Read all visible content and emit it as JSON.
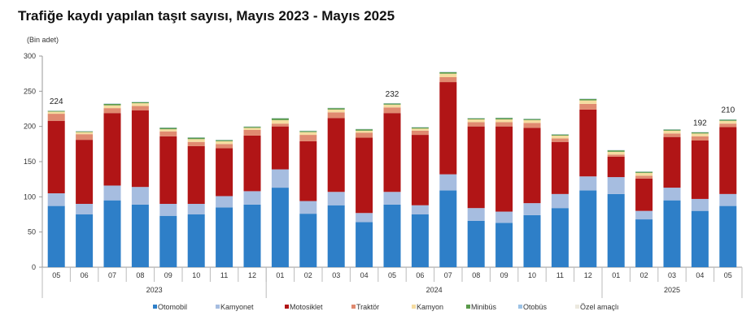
{
  "chart_data": {
    "type": "bar",
    "stacked": true,
    "title": "Trafiğe kaydı yapılan taşıt sayısı, Mayıs 2023 - Mayıs 2025",
    "ylabel": "(Bin adet)",
    "ylim": [
      0,
      300
    ],
    "yticks": [
      0,
      50,
      100,
      150,
      200,
      250,
      300
    ],
    "grid": false,
    "legend": "bottom",
    "categories": [
      "05",
      "06",
      "07",
      "08",
      "09",
      "10",
      "11",
      "12",
      "01",
      "02",
      "03",
      "04",
      "05",
      "06",
      "07",
      "08",
      "09",
      "10",
      "11",
      "12",
      "01",
      "02",
      "03",
      "04",
      "05"
    ],
    "years": [
      {
        "label": "2023",
        "count": 8
      },
      {
        "label": "2024",
        "count": 12
      },
      {
        "label": "2025",
        "count": 5
      }
    ],
    "total_labels": [
      {
        "index": 0,
        "text": "224"
      },
      {
        "index": 12,
        "text": "232"
      },
      {
        "index": 23,
        "text": "192"
      },
      {
        "index": 24,
        "text": "210"
      }
    ],
    "series": [
      {
        "name": "Otomobil",
        "color": "#2e7fc8",
        "values": [
          87,
          75,
          95,
          89,
          73,
          75,
          85,
          89,
          113,
          76,
          88,
          64,
          89,
          75,
          109,
          66,
          63,
          74,
          84,
          109,
          104,
          68,
          95,
          80,
          87
        ]
      },
      {
        "name": "Kamyonet",
        "color": "#a6bde0",
        "values": [
          18,
          15,
          21,
          25,
          17,
          15,
          16,
          19,
          26,
          18,
          19,
          13,
          18,
          13,
          23,
          18,
          16,
          17,
          20,
          20,
          24,
          12,
          18,
          17,
          17
        ]
      },
      {
        "name": "Motosiklet",
        "color": "#b11516",
        "values": [
          103,
          91,
          103,
          109,
          96,
          82,
          68,
          79,
          61,
          85,
          105,
          107,
          112,
          100,
          131,
          116,
          121,
          107,
          74,
          95,
          29,
          46,
          72,
          83,
          95
        ]
      },
      {
        "name": "Traktör",
        "color": "#e08a70",
        "values": [
          10,
          8,
          7,
          6,
          7,
          6,
          6,
          8,
          4,
          9,
          8,
          7,
          8,
          6,
          7,
          6,
          6,
          7,
          5,
          8,
          3,
          4,
          5,
          6,
          5
        ]
      },
      {
        "name": "Kamyon",
        "color": "#f5dca0",
        "values": [
          3,
          3,
          4,
          4,
          3,
          4,
          4,
          3,
          5,
          4,
          4,
          3,
          4,
          3,
          5,
          4,
          4,
          4,
          4,
          5,
          4,
          4,
          4,
          4,
          4
        ]
      },
      {
        "name": "Minibüs",
        "color": "#5a9a4a",
        "values": [
          1,
          1,
          2,
          1.5,
          2,
          2,
          1.5,
          1.5,
          2.5,
          1.5,
          2,
          2,
          1.5,
          1.5,
          2,
          1.5,
          2,
          1.5,
          1.5,
          2,
          2,
          1.5,
          1.5,
          1.5,
          1.5
        ]
      },
      {
        "name": "Otobüs",
        "color": "#9dc3e6",
        "values": [
          0.5,
          0.5,
          0.5,
          0.5,
          0.5,
          0.5,
          0.5,
          0.5,
          0.5,
          0.5,
          0.5,
          0.5,
          0.5,
          0.5,
          0.5,
          0.5,
          0.5,
          0.5,
          0.5,
          0.5,
          0.5,
          0.5,
          0.5,
          0.5,
          0.5
        ]
      },
      {
        "name": "Özel amaçlı",
        "color": "#ece9df",
        "values": [
          0.3,
          0.3,
          0.3,
          0.3,
          0.3,
          0.3,
          0.3,
          0.3,
          0.3,
          0.3,
          0.3,
          0.3,
          0.3,
          0.3,
          0.3,
          0.3,
          0.3,
          0.3,
          0.3,
          0.3,
          0.3,
          0.3,
          0.3,
          0.3,
          0.3
        ]
      }
    ]
  }
}
